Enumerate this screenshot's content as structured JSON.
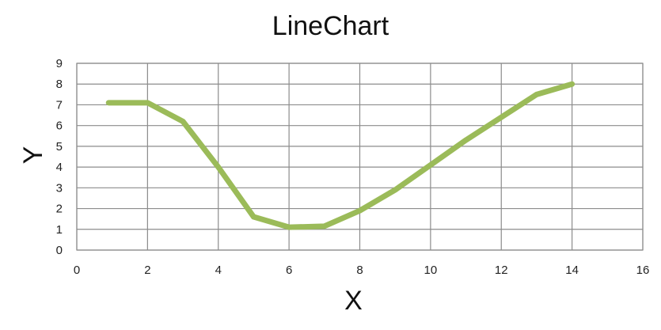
{
  "chart_data": {
    "type": "line",
    "title": "LineChart",
    "xlabel": "X",
    "ylabel": "Y",
    "xlim": [
      0,
      16
    ],
    "ylim": [
      0,
      9
    ],
    "x_ticks": [
      "0",
      "2",
      "4",
      "6",
      "8",
      "10",
      "12",
      "14",
      "16"
    ],
    "y_ticks": [
      "0",
      "1",
      "2",
      "3",
      "4",
      "5",
      "6",
      "7",
      "8",
      "9"
    ],
    "grid": true,
    "legend": "none",
    "series": [
      {
        "color": "#9bbb59",
        "x": [
          0.9,
          2,
          3,
          4,
          5,
          6,
          7,
          8,
          9,
          10,
          11,
          12,
          13,
          14
        ],
        "y": [
          7.1,
          7.1,
          6.2,
          4.0,
          1.6,
          1.1,
          1.15,
          1.9,
          2.9,
          4.1,
          5.3,
          6.4,
          7.5,
          8.0
        ]
      }
    ]
  }
}
